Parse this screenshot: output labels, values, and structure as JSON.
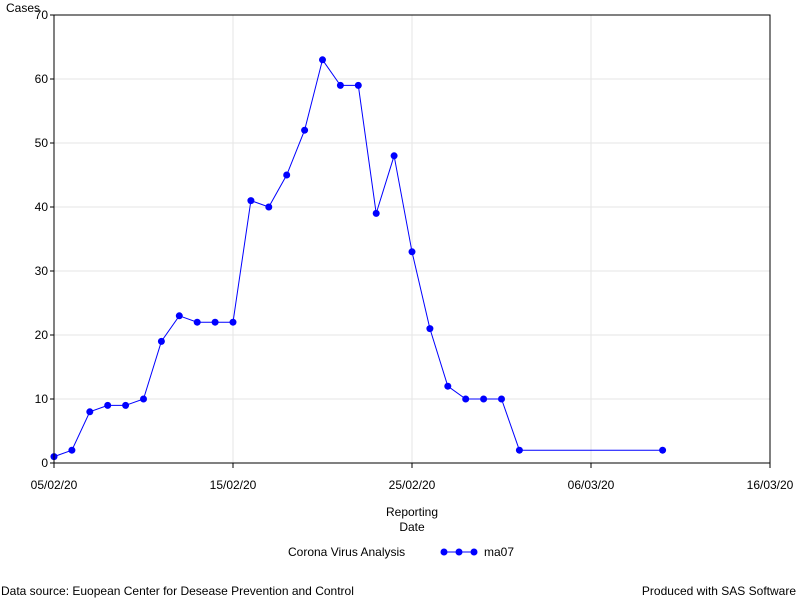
{
  "chart_data": {
    "type": "line",
    "ylabel": "Cases",
    "xlabel_lines": [
      "Reporting",
      "Date"
    ],
    "xlim": [
      "2020-02-05",
      "2020-03-16"
    ],
    "ylim": [
      0,
      70
    ],
    "x_ticks": [
      "05/02/20",
      "15/02/20",
      "25/02/20",
      "06/03/20",
      "16/03/20"
    ],
    "y_ticks": [
      0,
      10,
      20,
      30,
      40,
      50,
      60,
      70
    ],
    "grid": true,
    "legend": {
      "title": "Corona Virus Analysis",
      "placement": "bottom",
      "entries": [
        "ma07"
      ]
    },
    "colors": {
      "series": "#0000ff",
      "grid": "#e6e6e6",
      "axis": "#000000"
    },
    "series": [
      {
        "name": "ma07",
        "marker": "circle",
        "points": [
          {
            "x": "2020-02-05",
            "y": 1
          },
          {
            "x": "2020-02-06",
            "y": 2
          },
          {
            "x": "2020-02-07",
            "y": 8
          },
          {
            "x": "2020-02-08",
            "y": 9
          },
          {
            "x": "2020-02-09",
            "y": 9
          },
          {
            "x": "2020-02-10",
            "y": 10
          },
          {
            "x": "2020-02-11",
            "y": 19
          },
          {
            "x": "2020-02-12",
            "y": 23
          },
          {
            "x": "2020-02-13",
            "y": 22
          },
          {
            "x": "2020-02-14",
            "y": 22
          },
          {
            "x": "2020-02-15",
            "y": 22
          },
          {
            "x": "2020-02-16",
            "y": 41
          },
          {
            "x": "2020-02-17",
            "y": 40
          },
          {
            "x": "2020-02-18",
            "y": 45
          },
          {
            "x": "2020-02-19",
            "y": 52
          },
          {
            "x": "2020-02-20",
            "y": 63
          },
          {
            "x": "2020-02-21",
            "y": 59
          },
          {
            "x": "2020-02-22",
            "y": 59
          },
          {
            "x": "2020-02-23",
            "y": 39
          },
          {
            "x": "2020-02-24",
            "y": 48
          },
          {
            "x": "2020-02-25",
            "y": 33
          },
          {
            "x": "2020-02-26",
            "y": 21
          },
          {
            "x": "2020-02-27",
            "y": 12
          },
          {
            "x": "2020-02-28",
            "y": 10
          },
          {
            "x": "2020-02-29",
            "y": 10
          },
          {
            "x": "2020-03-01",
            "y": 10
          },
          {
            "x": "2020-03-02",
            "y": 2
          },
          {
            "x": "2020-03-10",
            "y": 2
          }
        ]
      }
    ]
  },
  "footer": {
    "source": "Data source: Euopean Center for Desease Prevention and Control",
    "produced": "Produced with SAS Software"
  }
}
